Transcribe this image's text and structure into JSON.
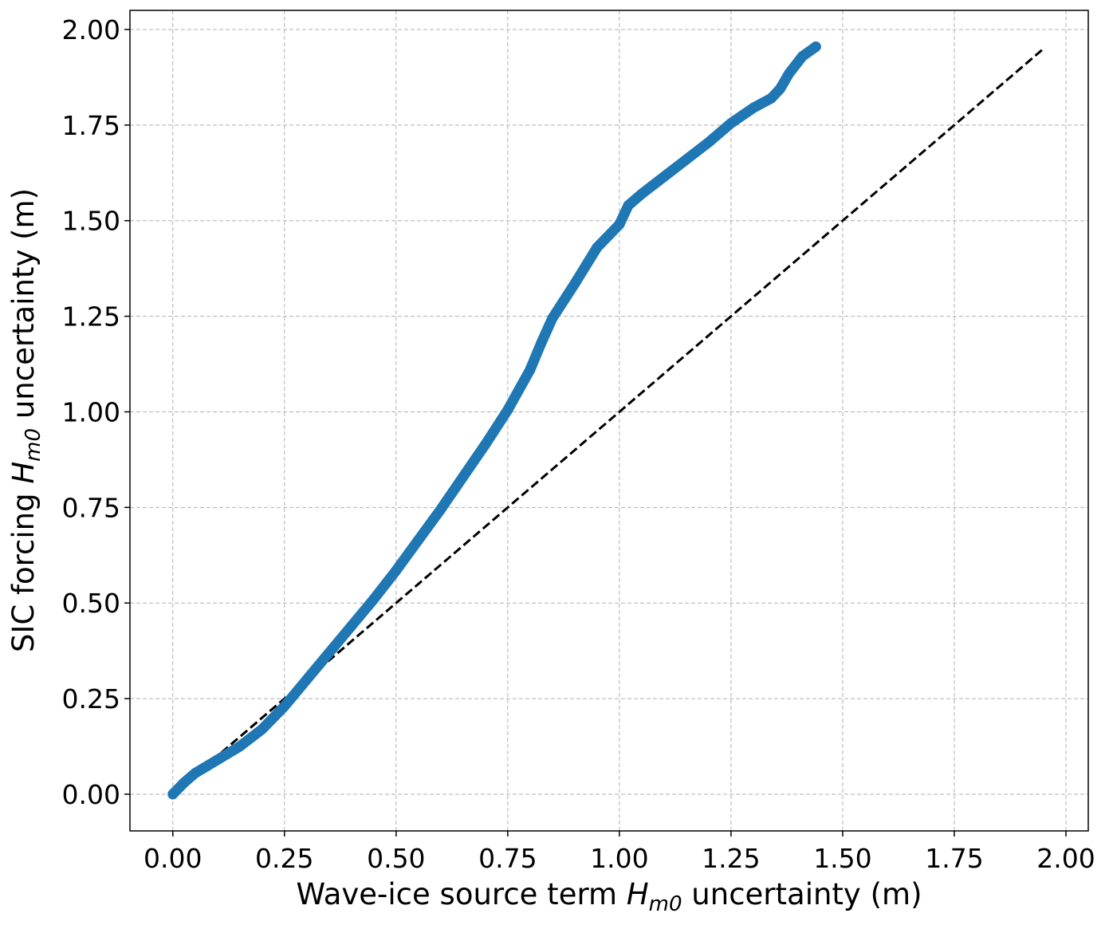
{
  "chart_data": {
    "type": "scatter",
    "x_label": {
      "before": "Wave-ice source term ",
      "symbol": "H",
      "subscript": "m0",
      "after": " uncertainty (m)"
    },
    "y_label": {
      "before": "SIC forcing ",
      "symbol": "H",
      "subscript": "m0",
      "after": " uncertainty (m)"
    },
    "x": [
      0,
      0.025,
      0.05,
      0.1,
      0.15,
      0.2,
      0.25,
      0.3,
      0.35,
      0.4,
      0.45,
      0.5,
      0.55,
      0.6,
      0.65,
      0.7,
      0.75,
      0.8,
      0.825,
      0.85,
      0.9,
      0.95,
      1.0,
      1.02,
      1.05,
      1.1,
      1.15,
      1.2,
      1.25,
      1.3,
      1.34,
      1.36,
      1.38,
      1.41,
      1.44
    ],
    "values": [
      0,
      0.03,
      0.055,
      0.09,
      0.125,
      0.17,
      0.23,
      0.3,
      0.37,
      0.44,
      0.51,
      0.585,
      0.665,
      0.745,
      0.83,
      0.915,
      1.005,
      1.11,
      1.18,
      1.245,
      1.335,
      1.43,
      1.49,
      1.54,
      1.57,
      1.615,
      1.66,
      1.705,
      1.755,
      1.795,
      1.82,
      1.845,
      1.885,
      1.93,
      1.955
    ],
    "color": "#1f77b4",
    "reference_line": {
      "x": [
        0,
        1.95
      ],
      "values": [
        0,
        1.95
      ],
      "color": "#000000",
      "dashed": true
    },
    "xlim": [
      -0.096,
      2.05
    ],
    "ylim": [
      -0.096,
      2.05
    ],
    "xticks": [
      {
        "value": 0,
        "label": "0.00"
      },
      {
        "value": 0.25,
        "label": "0.25"
      },
      {
        "value": 0.5,
        "label": "0.50"
      },
      {
        "value": 0.75,
        "label": "0.75"
      },
      {
        "value": 1,
        "label": "1.00"
      },
      {
        "value": 1.25,
        "label": "1.25"
      },
      {
        "value": 1.5,
        "label": "1.50"
      },
      {
        "value": 1.75,
        "label": "1.75"
      },
      {
        "value": 2,
        "label": "2.00"
      }
    ],
    "yticks": [
      {
        "value": 0,
        "label": "0.00"
      },
      {
        "value": 0.25,
        "label": "0.25"
      },
      {
        "value": 0.5,
        "label": "0.50"
      },
      {
        "value": 0.75,
        "label": "0.75"
      },
      {
        "value": 1,
        "label": "1.00"
      },
      {
        "value": 1.25,
        "label": "1.25"
      },
      {
        "value": 1.5,
        "label": "1.50"
      },
      {
        "value": 1.75,
        "label": "1.75"
      },
      {
        "value": 2,
        "label": "2.00"
      }
    ],
    "grid": true
  }
}
